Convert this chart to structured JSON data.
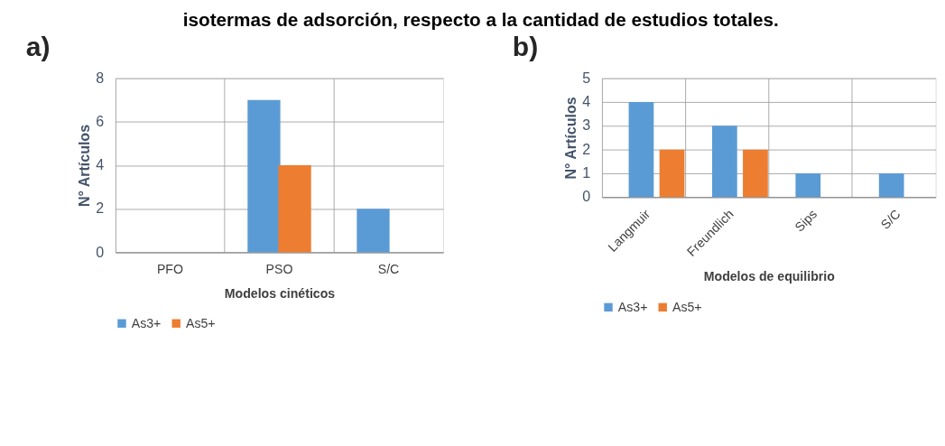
{
  "chart_data": [
    {
      "type": "bar",
      "title": "a)",
      "xlabel": "Modelos cinéticos",
      "ylabel": "N° Artículos",
      "categories": [
        "PFO",
        "PSO",
        "S/C"
      ],
      "series": [
        {
          "name": "As3+",
          "color": "#5b9bd5",
          "values": [
            0,
            7,
            2
          ]
        },
        {
          "name": "As5+",
          "color": "#ed7d31",
          "values": [
            0,
            4,
            0
          ]
        }
      ],
      "ylim": [
        0,
        8
      ],
      "yticks": [
        0,
        2,
        4,
        6,
        8
      ],
      "grid": true,
      "legend": "bottom",
      "annotations": [
        "isotermas de adsorción, respecto a la cantidad de estudios totales."
      ]
    },
    {
      "type": "bar",
      "title": "b)",
      "xlabel": "Modelos de equilibrio",
      "ylabel": "N° Artículos",
      "categories": [
        "Langmuir",
        "Freundlich",
        "Sips",
        "S/C"
      ],
      "series": [
        {
          "name": "As3+",
          "color": "#5b9bd5",
          "values": [
            4,
            3,
            1,
            1
          ]
        },
        {
          "name": "As5+",
          "color": "#ed7d31",
          "values": [
            2,
            2,
            0,
            0
          ]
        }
      ],
      "ylim": [
        0,
        5
      ],
      "yticks": [
        0,
        1,
        2,
        3,
        4,
        5
      ],
      "grid": true,
      "legend": "bottom"
    }
  ]
}
